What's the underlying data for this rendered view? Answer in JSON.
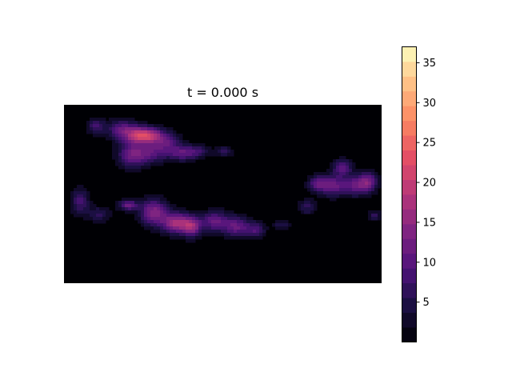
{
  "chart_data": {
    "type": "heatmap",
    "title": "t = 0.000 s",
    "xlabel": "",
    "ylabel": "",
    "colormap": "magma",
    "colorbar": {
      "range": [
        0,
        37
      ],
      "levels": 20,
      "ticks": [
        5,
        10,
        15,
        20,
        25,
        30,
        35
      ],
      "tick_labels": [
        "5",
        "10",
        "15",
        "20",
        "25",
        "30",
        "35"
      ]
    },
    "grid": false,
    "axes_visible": false,
    "blobs": [
      {
        "cx": 0.1,
        "cy": 0.12,
        "sx": 0.02,
        "sy": 0.03,
        "v": 8
      },
      {
        "cx": 0.18,
        "cy": 0.14,
        "sx": 0.03,
        "sy": 0.04,
        "v": 10
      },
      {
        "cx": 0.23,
        "cy": 0.17,
        "sx": 0.03,
        "sy": 0.035,
        "v": 13
      },
      {
        "cx": 0.27,
        "cy": 0.17,
        "sx": 0.03,
        "sy": 0.03,
        "v": 14
      },
      {
        "cx": 0.21,
        "cy": 0.28,
        "sx": 0.03,
        "sy": 0.05,
        "v": 11
      },
      {
        "cx": 0.27,
        "cy": 0.27,
        "sx": 0.035,
        "sy": 0.04,
        "v": 9
      },
      {
        "cx": 0.32,
        "cy": 0.21,
        "sx": 0.03,
        "sy": 0.04,
        "v": 9
      },
      {
        "cx": 0.37,
        "cy": 0.27,
        "sx": 0.03,
        "sy": 0.03,
        "v": 10
      },
      {
        "cx": 0.42,
        "cy": 0.26,
        "sx": 0.025,
        "sy": 0.025,
        "v": 6
      },
      {
        "cx": 0.5,
        "cy": 0.26,
        "sx": 0.02,
        "sy": 0.02,
        "v": 6
      },
      {
        "cx": 0.05,
        "cy": 0.54,
        "sx": 0.02,
        "sy": 0.05,
        "v": 8
      },
      {
        "cx": 0.11,
        "cy": 0.61,
        "sx": 0.025,
        "sy": 0.03,
        "v": 6
      },
      {
        "cx": 0.2,
        "cy": 0.56,
        "sx": 0.02,
        "sy": 0.02,
        "v": 12
      },
      {
        "cx": 0.28,
        "cy": 0.6,
        "sx": 0.03,
        "sy": 0.05,
        "v": 14
      },
      {
        "cx": 0.35,
        "cy": 0.66,
        "sx": 0.03,
        "sy": 0.04,
        "v": 17
      },
      {
        "cx": 0.4,
        "cy": 0.68,
        "sx": 0.02,
        "sy": 0.04,
        "v": 14
      },
      {
        "cx": 0.47,
        "cy": 0.65,
        "sx": 0.03,
        "sy": 0.04,
        "v": 11
      },
      {
        "cx": 0.54,
        "cy": 0.68,
        "sx": 0.03,
        "sy": 0.04,
        "v": 11
      },
      {
        "cx": 0.6,
        "cy": 0.7,
        "sx": 0.02,
        "sy": 0.03,
        "v": 8
      },
      {
        "cx": 0.68,
        "cy": 0.67,
        "sx": 0.02,
        "sy": 0.02,
        "v": 5
      },
      {
        "cx": 0.76,
        "cy": 0.57,
        "sx": 0.02,
        "sy": 0.03,
        "v": 6
      },
      {
        "cx": 0.79,
        "cy": 0.44,
        "sx": 0.02,
        "sy": 0.03,
        "v": 9
      },
      {
        "cx": 0.84,
        "cy": 0.45,
        "sx": 0.03,
        "sy": 0.04,
        "v": 12
      },
      {
        "cx": 0.87,
        "cy": 0.35,
        "sx": 0.02,
        "sy": 0.03,
        "v": 11
      },
      {
        "cx": 0.91,
        "cy": 0.45,
        "sx": 0.025,
        "sy": 0.04,
        "v": 10
      },
      {
        "cx": 0.95,
        "cy": 0.43,
        "sx": 0.02,
        "sy": 0.04,
        "v": 12
      },
      {
        "cx": 0.97,
        "cy": 0.62,
        "sx": 0.015,
        "sy": 0.02,
        "v": 6
      }
    ]
  }
}
